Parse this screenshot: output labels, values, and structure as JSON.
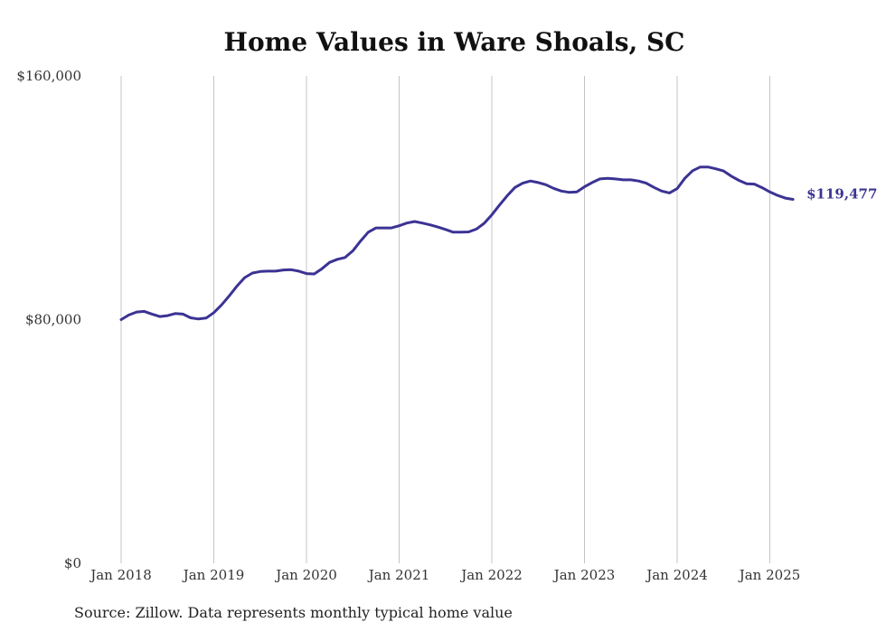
{
  "chart_data": {
    "type": "line",
    "title": "Home Values in Ware Shoals, SC",
    "xlabel": "",
    "ylabel": "",
    "ylim": [
      0,
      160000
    ],
    "yticks": [
      0,
      80000,
      160000
    ],
    "ytick_labels": [
      "$0",
      "$80,000",
      "$160,000"
    ],
    "xlim": [
      "2018-01",
      "2025-04"
    ],
    "xtick_labels": [
      "Jan 2018",
      "Jan 2019",
      "Jan 2020",
      "Jan 2021",
      "Jan 2022",
      "Jan 2023",
      "Jan 2024",
      "Jan 2025"
    ],
    "grid": "vertical",
    "end_label": "$119,477",
    "line_color": "#3b3393",
    "series": [
      {
        "x": [
          "2018-01",
          "2018-02",
          "2018-03",
          "2018-04",
          "2018-05",
          "2018-06",
          "2018-07",
          "2018-08",
          "2018-09",
          "2018-10",
          "2018-11",
          "2018-12",
          "2019-01",
          "2019-02",
          "2019-03",
          "2019-04",
          "2019-05",
          "2019-06",
          "2019-07",
          "2019-08",
          "2019-09",
          "2019-10",
          "2019-11",
          "2019-12",
          "2020-01",
          "2020-02",
          "2020-03",
          "2020-04",
          "2020-05",
          "2020-06",
          "2020-07",
          "2020-08",
          "2020-09",
          "2020-10",
          "2020-11",
          "2020-12",
          "2021-01",
          "2021-02",
          "2021-03",
          "2021-04",
          "2021-05",
          "2021-06",
          "2021-07",
          "2021-08",
          "2021-09",
          "2021-10",
          "2021-11",
          "2021-12",
          "2022-01",
          "2022-02",
          "2022-03",
          "2022-04",
          "2022-05",
          "2022-06",
          "2022-07",
          "2022-08",
          "2022-09",
          "2022-10",
          "2022-11",
          "2022-12",
          "2023-01",
          "2023-02",
          "2023-03",
          "2023-04",
          "2023-05",
          "2023-06",
          "2023-07",
          "2023-08",
          "2023-09",
          "2023-10",
          "2023-11",
          "2023-12",
          "2024-01",
          "2024-02",
          "2024-03",
          "2024-04",
          "2024-05",
          "2024-06",
          "2024-07",
          "2024-08",
          "2024-09",
          "2024-10",
          "2024-11",
          "2024-12",
          "2025-01",
          "2025-02",
          "2025-03",
          "2025-04"
        ],
        "values": [
          80000,
          81500,
          82500,
          82700,
          81800,
          81000,
          81300,
          82000,
          81800,
          80600,
          80200,
          80500,
          82300,
          84800,
          87800,
          91000,
          93800,
          95300,
          95800,
          95900,
          95900,
          96300,
          96400,
          95900,
          95100,
          95000,
          96700,
          98800,
          99800,
          100400,
          102600,
          105800,
          108700,
          110100,
          110100,
          110100,
          110800,
          111700,
          112200,
          111700,
          111100,
          110400,
          109600,
          108700,
          108700,
          108800,
          109700,
          111600,
          114400,
          117600,
          120700,
          123400,
          124800,
          125500,
          125000,
          124300,
          123100,
          122200,
          121800,
          121900,
          123600,
          125000,
          126200,
          126400,
          126200,
          125900,
          125900,
          125500,
          124800,
          123400,
          122200,
          121600,
          123000,
          126400,
          128900,
          130100,
          130100,
          129500,
          128800,
          127100,
          125700,
          124600,
          124500,
          123300,
          121900,
          120800,
          119900,
          119477
        ]
      }
    ]
  },
  "source": "Source: Zillow. Data represents monthly typical home value"
}
